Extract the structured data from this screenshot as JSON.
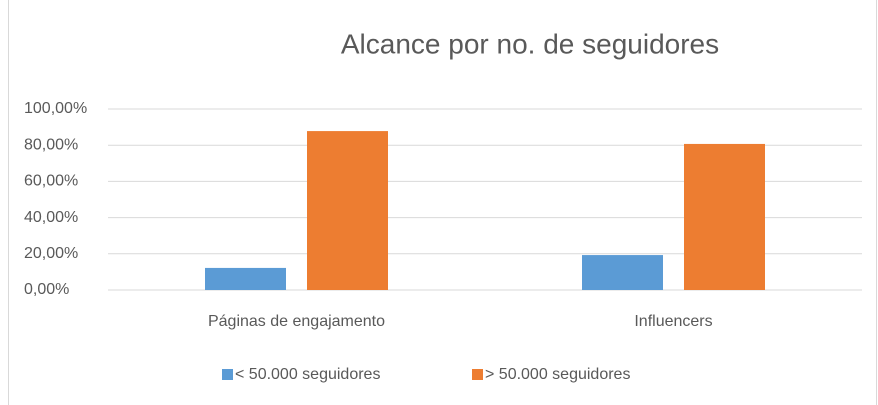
{
  "chart_data": {
    "type": "bar",
    "title": "Alcance por no. de seguidores",
    "categories": [
      "Páginas de engajamento",
      "Influencers"
    ],
    "series": [
      {
        "name": "< 50.000 seguidores",
        "color": "#5b9bd5",
        "values": [
          12.2,
          19.3
        ]
      },
      {
        "name": "> 50.000 seguidores",
        "color": "#ed7d31",
        "values": [
          87.8,
          80.7
        ]
      }
    ],
    "ylim": [
      0,
      100
    ],
    "yticks": [
      {
        "value": 0,
        "label": "0,00%"
      },
      {
        "value": 20,
        "label": "20,00%"
      },
      {
        "value": 40,
        "label": "40,00%"
      },
      {
        "value": 60,
        "label": "60,00%"
      },
      {
        "value": 80,
        "label": "80,00%"
      },
      {
        "value": 100,
        "label": "100,00%"
      }
    ],
    "grid": true,
    "legend": "bottom"
  }
}
